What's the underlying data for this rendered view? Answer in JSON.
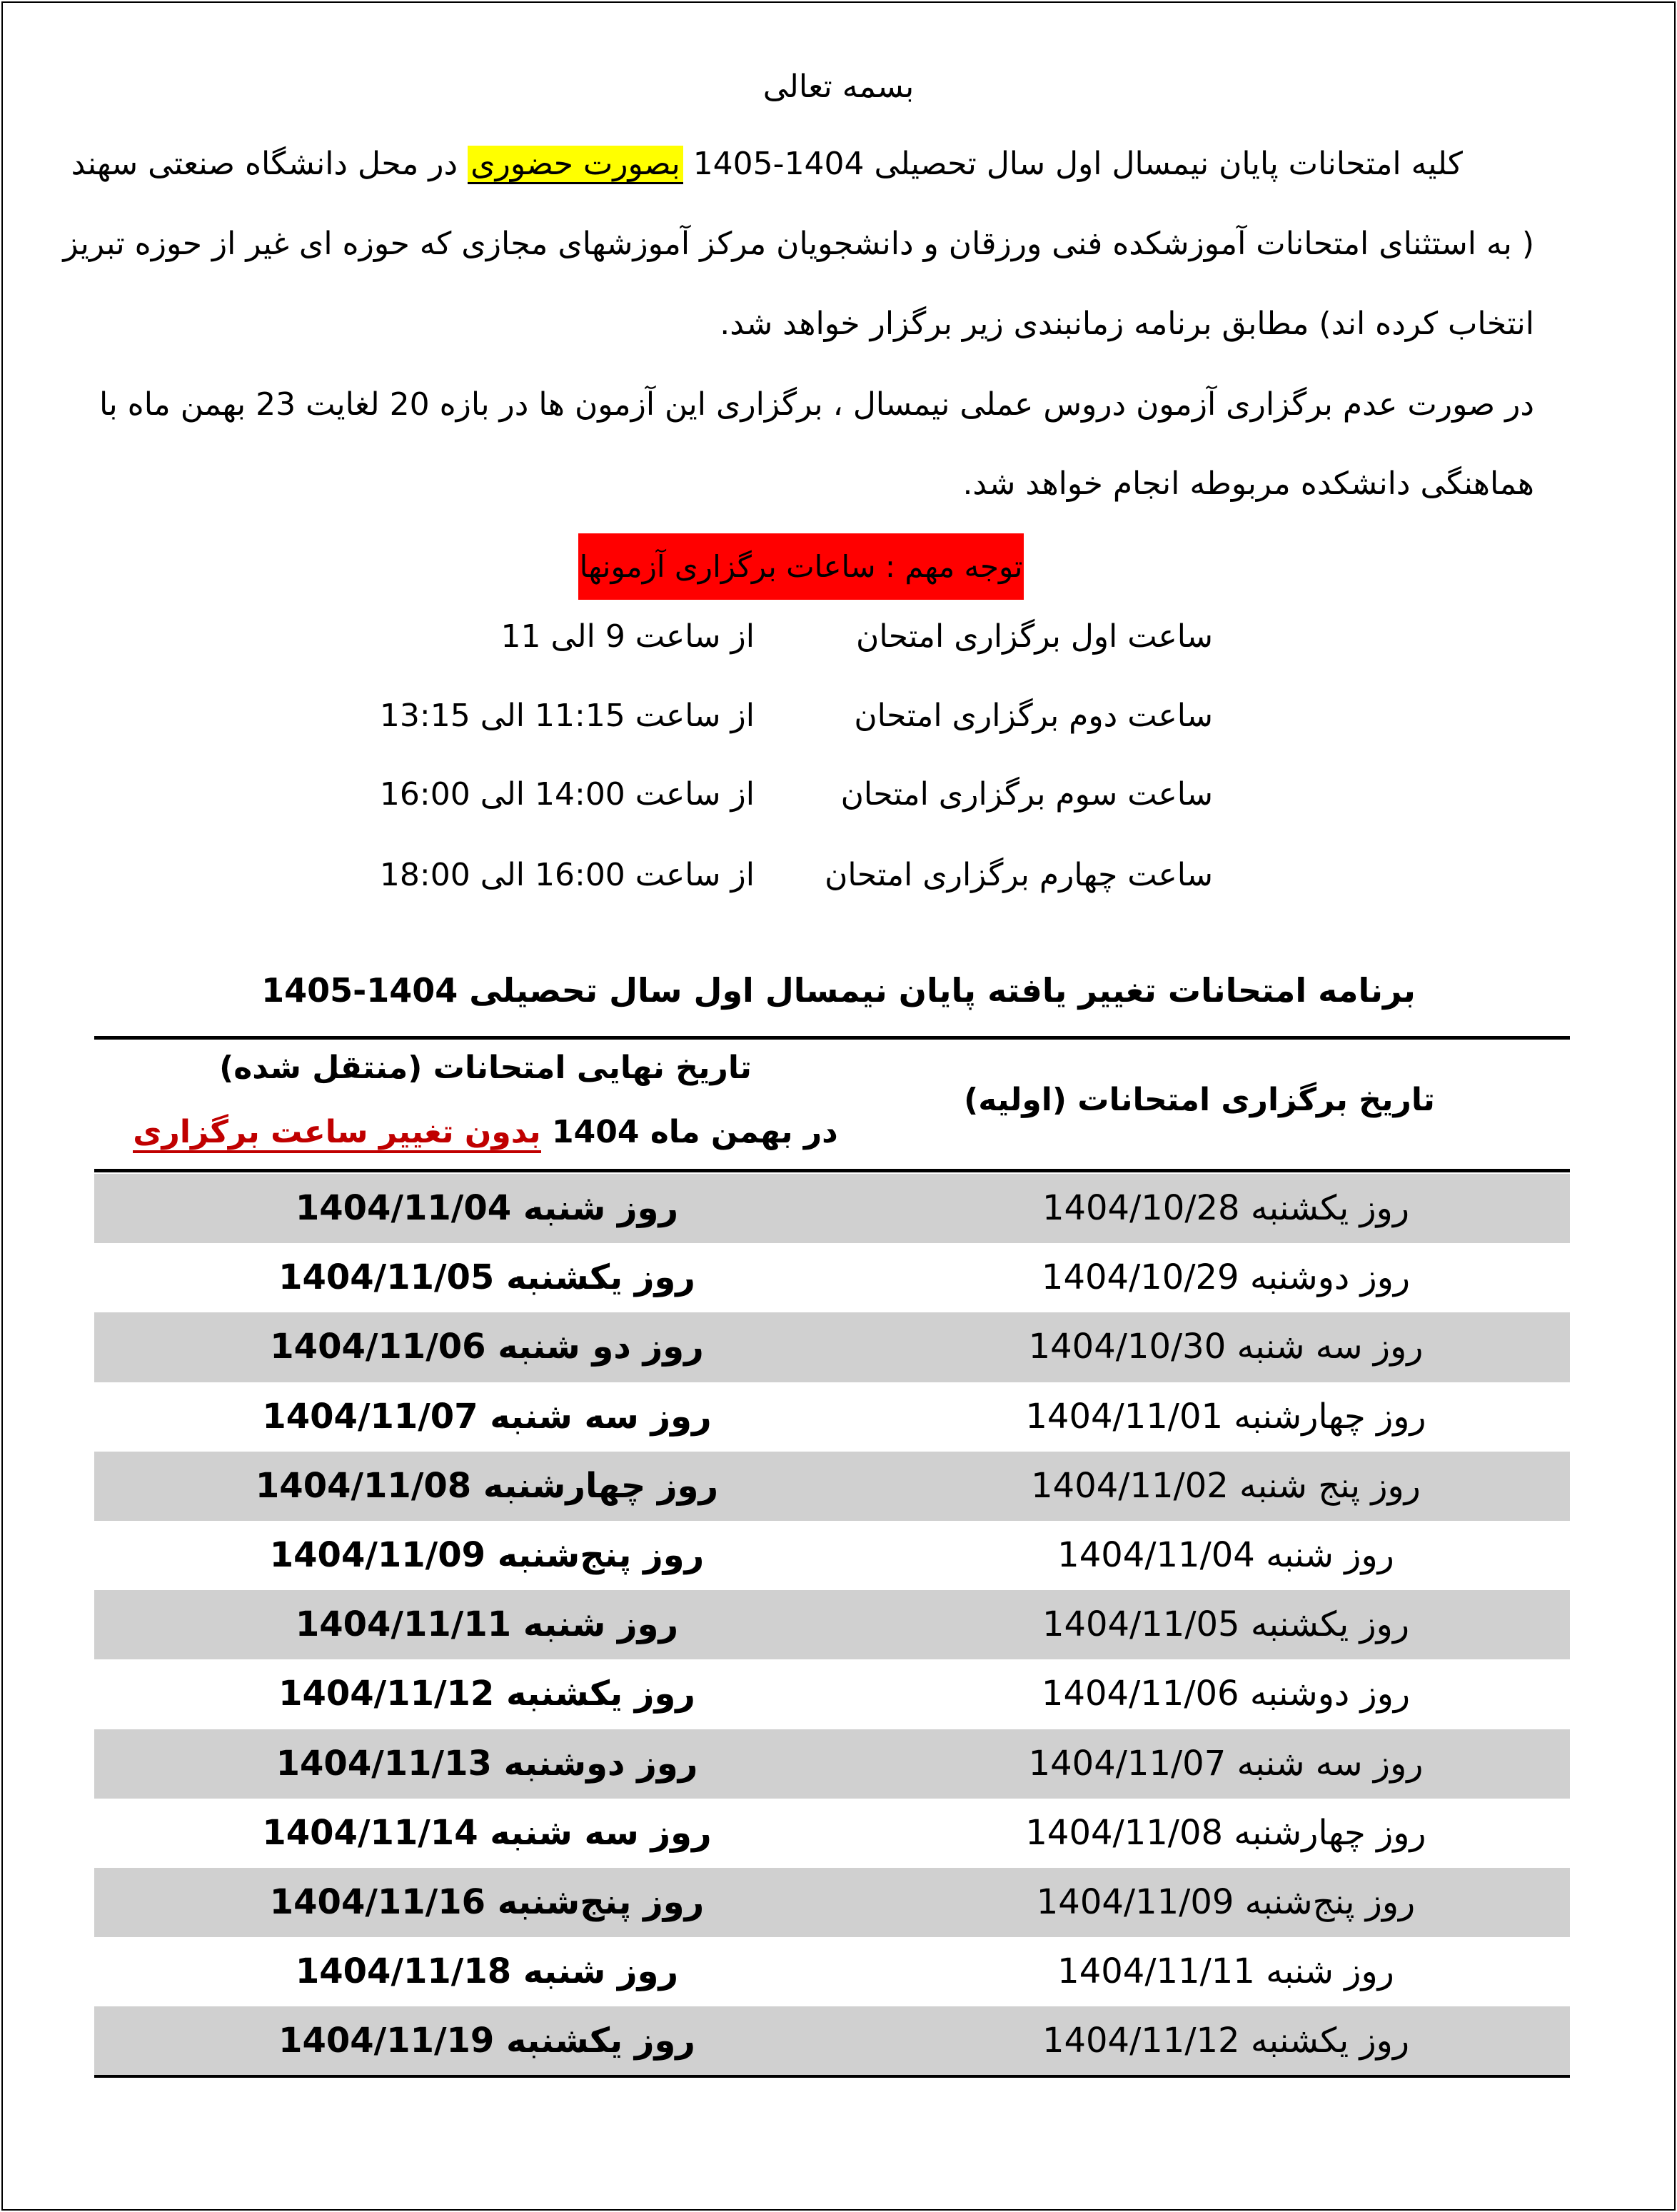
{
  "header": {
    "basmala": "بسمه تعالی"
  },
  "intro": {
    "line1_pre": "کلیه امتحانات پایان نیمسال  اول سال تحصیلی 1404-1405",
    "line1_highlight": "بصورت حضوری",
    "line1_post": " در محل دانشگاه صنعتی سهند",
    "line2": "( به استثنای امتحانات آموزشکده فنی ورزقان و دانشجویان مرکز آموزشهای مجازی که حوزه ای غیر از حوزه تبریز",
    "line3": "انتخاب کرده اند)  مطابق برنامه زمانبندی زیر برگزار خواهد شد.",
    "line4": "در صورت عدم برگزاری آزمون دروس عملی نیمسال ، برگزاری  این آزمون ها در بازه 20 لغایت 23 بهمن ماه  با",
    "line5": "هماهنگی دانشکده مربوطه انجام خواهد شد.",
    "highlight_color": "#ffff00"
  },
  "notice": {
    "text": "توجه مهم : ساعات برگزاری آزمونها",
    "color": "#ff0000"
  },
  "time_slots": [
    {
      "label": "ساعت اول برگزاری امتحان",
      "time": "از ساعت 9 الی 11"
    },
    {
      "label": "ساعت دوم برگزاری امتحان",
      "time": "از ساعت 11:15 الی 13:15"
    },
    {
      "label": "ساعت سوم برگزاری امتحان",
      "time": "از ساعت 14:00 الی 16:00"
    },
    {
      "label": "ساعت چهارم برگزاری امتحان",
      "time": "از ساعت  16:00 الی 18:00"
    }
  ],
  "schedule": {
    "title": "برنامه امتحانات  تغییر یافته پایان نیمسال اول سال تحصیلی 1404-1405",
    "col_original": "تاریخ برگزاری امتحانات (اولیه)",
    "col_final_line1": "تاریخ نهایی امتحانات (منتقل شده)",
    "col_final_line2_pre": "در بهمن ماه 1404 ",
    "col_final_line2_red": "بدون تغییر ساعت برگزاری",
    "accent_red": "#c00000",
    "row_shade": "#d0d0d0",
    "rows": [
      {
        "original": "روز یکشنبه 1404/10/28",
        "final": "روز شنبه 1404/11/04"
      },
      {
        "original": "روز دوشنبه 1404/10/29",
        "final": "روز یکشنبه 1404/11/05"
      },
      {
        "original": "روز سه شنبه 1404/10/30",
        "final": "روز دو شنبه 1404/11/06"
      },
      {
        "original": "روز چهارشنبه 1404/11/01",
        "final": "روز سه شنبه 1404/11/07"
      },
      {
        "original": "روز پنج شنبه 1404/11/02",
        "final": "روز چهارشنبه 1404/11/08"
      },
      {
        "original": "روز شنبه 1404/11/04",
        "final": "روز پنج‌شنبه 1404/11/09"
      },
      {
        "original": "روز یکشنبه 1404/11/05",
        "final": "روز شنبه 1404/11/11"
      },
      {
        "original": "روز دوشنبه 1404/11/06",
        "final": "روز یکشنبه 1404/11/12"
      },
      {
        "original": "روز سه شنبه 1404/11/07",
        "final": "روز دوشنبه 1404/11/13"
      },
      {
        "original": "روز چهارشنبه 1404/11/08",
        "final": "روز سه شنبه 1404/11/14"
      },
      {
        "original": "روز پنج‌شنبه 1404/11/09",
        "final": "روز پنج‌شنبه 1404/11/16"
      },
      {
        "original": "روز شنبه 1404/11/11",
        "final": "روز شنبه 1404/11/18"
      },
      {
        "original": "روز یکشنبه 1404/11/12",
        "final": "روز یکشنبه 1404/11/19"
      }
    ]
  }
}
